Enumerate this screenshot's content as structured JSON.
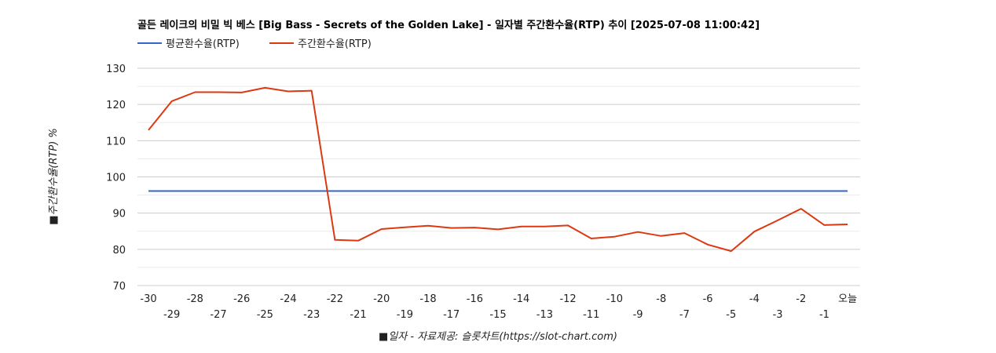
{
  "chart_data": {
    "type": "line",
    "title": "골든 레이크의 비밀 빅 베스 [Big Bass - Secrets of the Golden Lake] - 일자별 주간환수율(RTP) 추이 [2025-07-08 11:00:42]",
    "xlabel": "■일자 - 자료제공: 슬롯차트(https://slot-chart.com)",
    "ylabel": "■주간환수율(RTP) %",
    "ylim": [
      70,
      130
    ],
    "yticks": [
      "70",
      "80",
      "90",
      "100",
      "110",
      "120",
      "130"
    ],
    "grid": true,
    "legend_position": "top-left",
    "categories": [
      "-30",
      "-29",
      "-28",
      "-27",
      "-26",
      "-25",
      "-24",
      "-23",
      "-22",
      "-21",
      "-20",
      "-19",
      "-18",
      "-17",
      "-16",
      "-15",
      "-14",
      "-13",
      "-12",
      "-11",
      "-10",
      "-9",
      "-8",
      "-7",
      "-6",
      "-5",
      "-4",
      "-3",
      "-2",
      "-1",
      "오늘"
    ],
    "series": [
      {
        "name": "평균환수율(RTP)",
        "color": "#3366cc",
        "values": [
          96.1,
          96.1,
          96.1,
          96.1,
          96.1,
          96.1,
          96.1,
          96.1,
          96.1,
          96.1,
          96.1,
          96.1,
          96.1,
          96.1,
          96.1,
          96.1,
          96.1,
          96.1,
          96.1,
          96.1,
          96.1,
          96.1,
          96.1,
          96.1,
          96.1,
          96.1,
          96.1,
          96.1,
          96.1,
          96.1,
          96.1
        ]
      },
      {
        "name": "주간환수율(RTP)",
        "color": "#dc3912",
        "values": [
          112.9,
          120.9,
          123.4,
          123.4,
          123.3,
          124.6,
          123.6,
          123.8,
          82.6,
          82.4,
          85.6,
          86.1,
          86.5,
          85.9,
          86.0,
          85.5,
          86.3,
          86.3,
          86.6,
          83.0,
          83.5,
          84.8,
          83.7,
          84.5,
          81.3,
          79.5,
          84.9,
          88.0,
          91.2,
          86.7,
          86.9
        ]
      }
    ]
  }
}
